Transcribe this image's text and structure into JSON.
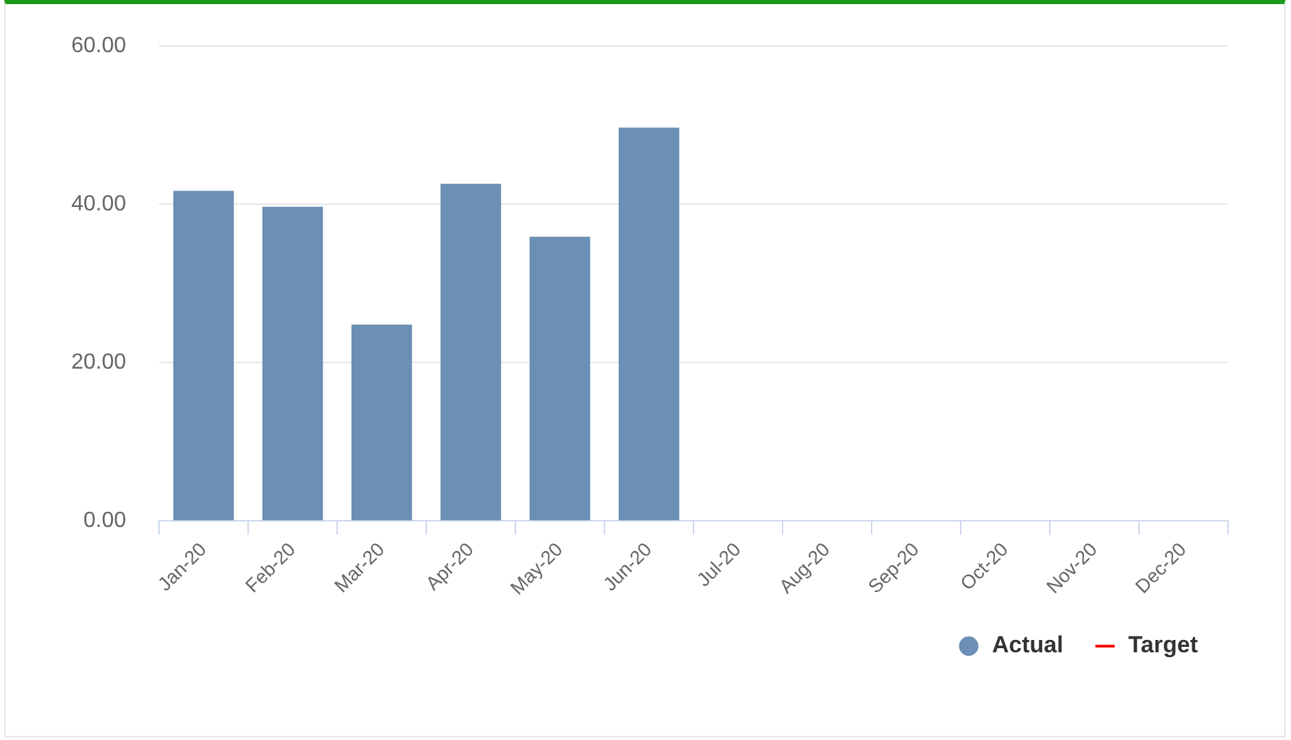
{
  "chart_data": {
    "type": "bar",
    "categories": [
      "Jan-20",
      "Feb-20",
      "Mar-20",
      "Apr-20",
      "May-20",
      "Jun-20",
      "Jul-20",
      "Aug-20",
      "Sep-20",
      "Oct-20",
      "Nov-20",
      "Dec-20"
    ],
    "series": [
      {
        "name": "Actual",
        "color": "#6b8fb5",
        "values": [
          41.7,
          39.7,
          24.8,
          42.6,
          35.9,
          49.7,
          null,
          null,
          null,
          null,
          null,
          null
        ]
      },
      {
        "name": "Target",
        "type": "line",
        "color": "#ff0000",
        "values": [
          null,
          null,
          null,
          null,
          null,
          null,
          null,
          null,
          null,
          null,
          null,
          null
        ]
      }
    ],
    "ylim": [
      0,
      60
    ],
    "yticks": [
      {
        "value": 0,
        "label": "0.00"
      },
      {
        "value": 20,
        "label": "20.00"
      },
      {
        "value": 40,
        "label": "40.00"
      },
      {
        "value": 60,
        "label": "60.00"
      }
    ],
    "grid": "y",
    "legend": "bottom right"
  }
}
